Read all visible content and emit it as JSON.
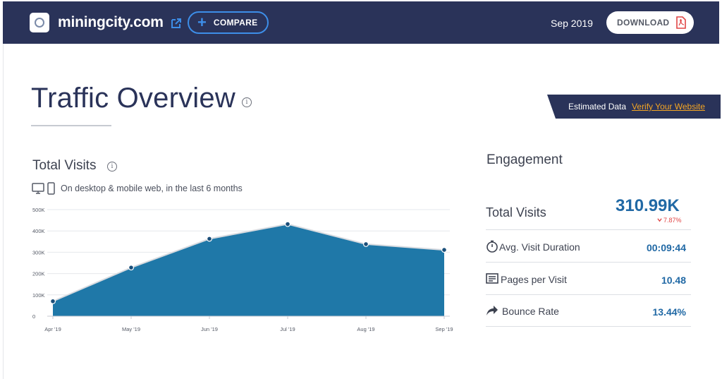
{
  "header": {
    "site_name": "miningcity.com",
    "compare_label": "COMPARE",
    "date": "Sep 2019",
    "download_label": "DOWNLOAD"
  },
  "page": {
    "title": "Traffic Overview",
    "info_glyph": "i"
  },
  "banner": {
    "estimated_label": "Estimated Data",
    "verify_label": "Verify Your Website"
  },
  "total_visits": {
    "title": "Total Visits",
    "subtitle": "On desktop & mobile web, in the last 6 months"
  },
  "chart_data": {
    "type": "area",
    "categories": [
      "Apr '19",
      "May '19",
      "Jun '19",
      "Jul '19",
      "Aug '19",
      "Sep '19"
    ],
    "values": [
      70000,
      228000,
      363000,
      432000,
      338000,
      311000
    ],
    "y_ticks": [
      0,
      100000,
      200000,
      300000,
      400000,
      500000
    ],
    "y_tick_labels": [
      "0",
      "100K",
      "200K",
      "300K",
      "400K",
      "500K"
    ],
    "ylim": [
      0,
      500000
    ],
    "grid": true,
    "color": "#1f78a8"
  },
  "engagement": {
    "title": "Engagement",
    "total_visits_label": "Total Visits",
    "total_visits_value": "310.99K",
    "total_visits_change": "7.87%",
    "metrics": [
      {
        "icon": "stopwatch-icon",
        "label": "Avg. Visit Duration",
        "value": "00:09:44"
      },
      {
        "icon": "pages-icon",
        "label": "Pages per Visit",
        "value": "10.48"
      },
      {
        "icon": "share-arrow-icon",
        "label": "Bounce Rate",
        "value": "13.44%"
      }
    ]
  },
  "colors": {
    "header_bg": "#2a3359",
    "accent_blue": "#3d8ee8",
    "value_blue": "#2169a5",
    "chart_fill": "#1f78a8",
    "negative_red": "#e04444",
    "link_orange": "#f5a623"
  }
}
